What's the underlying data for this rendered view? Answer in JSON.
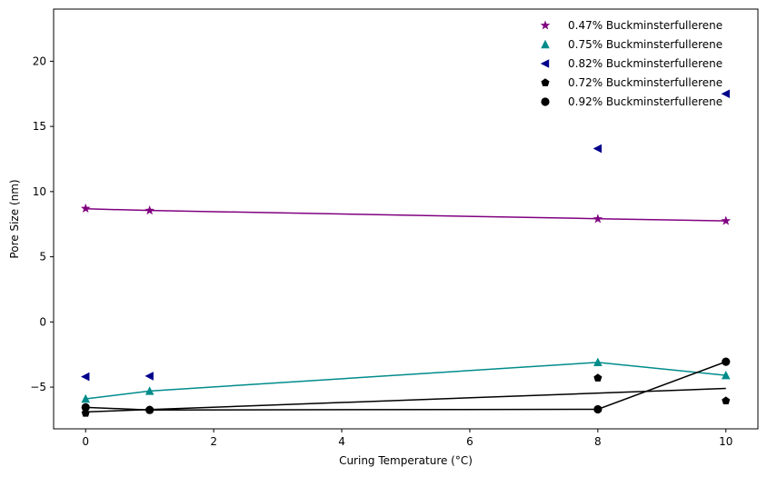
{
  "chart_data": {
    "type": "scatter",
    "title": "",
    "xlabel": "Curing Temperature (°C)",
    "ylabel": "Pore Size (nm)",
    "xlim": [
      -0.5,
      10.5
    ],
    "ylim": [
      -8.2,
      24.0
    ],
    "xticks": [
      0,
      2,
      4,
      6,
      8,
      10
    ],
    "yticks": [
      -5,
      0,
      5,
      10,
      15,
      20
    ],
    "grid": false,
    "legend_position": "top-right",
    "series": [
      {
        "name": "0.47% Buckminsterfullerene",
        "marker": "star",
        "color": "#800080",
        "x": [
          0,
          1,
          8,
          10
        ],
        "y": [
          8.7,
          8.55,
          7.9,
          7.75
        ],
        "fit": {
          "type": "line",
          "x": [
            0,
            1,
            8,
            10
          ],
          "y": [
            8.68,
            8.55,
            7.92,
            7.75
          ]
        }
      },
      {
        "name": "0.75% Buckminsterfullerene",
        "marker": "triangle-up",
        "color": "#008b8b",
        "x": [
          0,
          1,
          8,
          10
        ],
        "y": [
          -5.9,
          -5.3,
          -3.1,
          -4.1
        ],
        "fit": {
          "type": "polyline",
          "x": [
            0,
            1,
            8,
            10
          ],
          "y": [
            -5.9,
            -5.3,
            -3.1,
            -4.1
          ]
        }
      },
      {
        "name": "0.82% Buckminsterfullerene",
        "marker": "triangle-left",
        "color": "#00008b",
        "x": [
          0,
          1,
          8,
          10
        ],
        "y": [
          -4.2,
          -4.15,
          13.3,
          17.5
        ]
      },
      {
        "name": "0.72% Buckminsterfullerene",
        "marker": "pentagon",
        "color": "#000000",
        "x": [
          0,
          1,
          8,
          10
        ],
        "y": [
          -7.0,
          -6.75,
          -4.3,
          -6.05
        ],
        "fit": {
          "type": "line",
          "x": [
            0,
            10
          ],
          "y": [
            -6.9,
            -5.1
          ]
        }
      },
      {
        "name": "0.92% Buckminsterfullerene",
        "marker": "circle",
        "color": "#000000",
        "x": [
          0,
          1,
          8,
          10
        ],
        "y": [
          -6.55,
          -6.75,
          -6.7,
          -3.05
        ],
        "fit": {
          "type": "polyline",
          "x": [
            0,
            1,
            8,
            10
          ],
          "y": [
            -6.55,
            -6.75,
            -6.7,
            -3.05
          ]
        }
      }
    ]
  }
}
